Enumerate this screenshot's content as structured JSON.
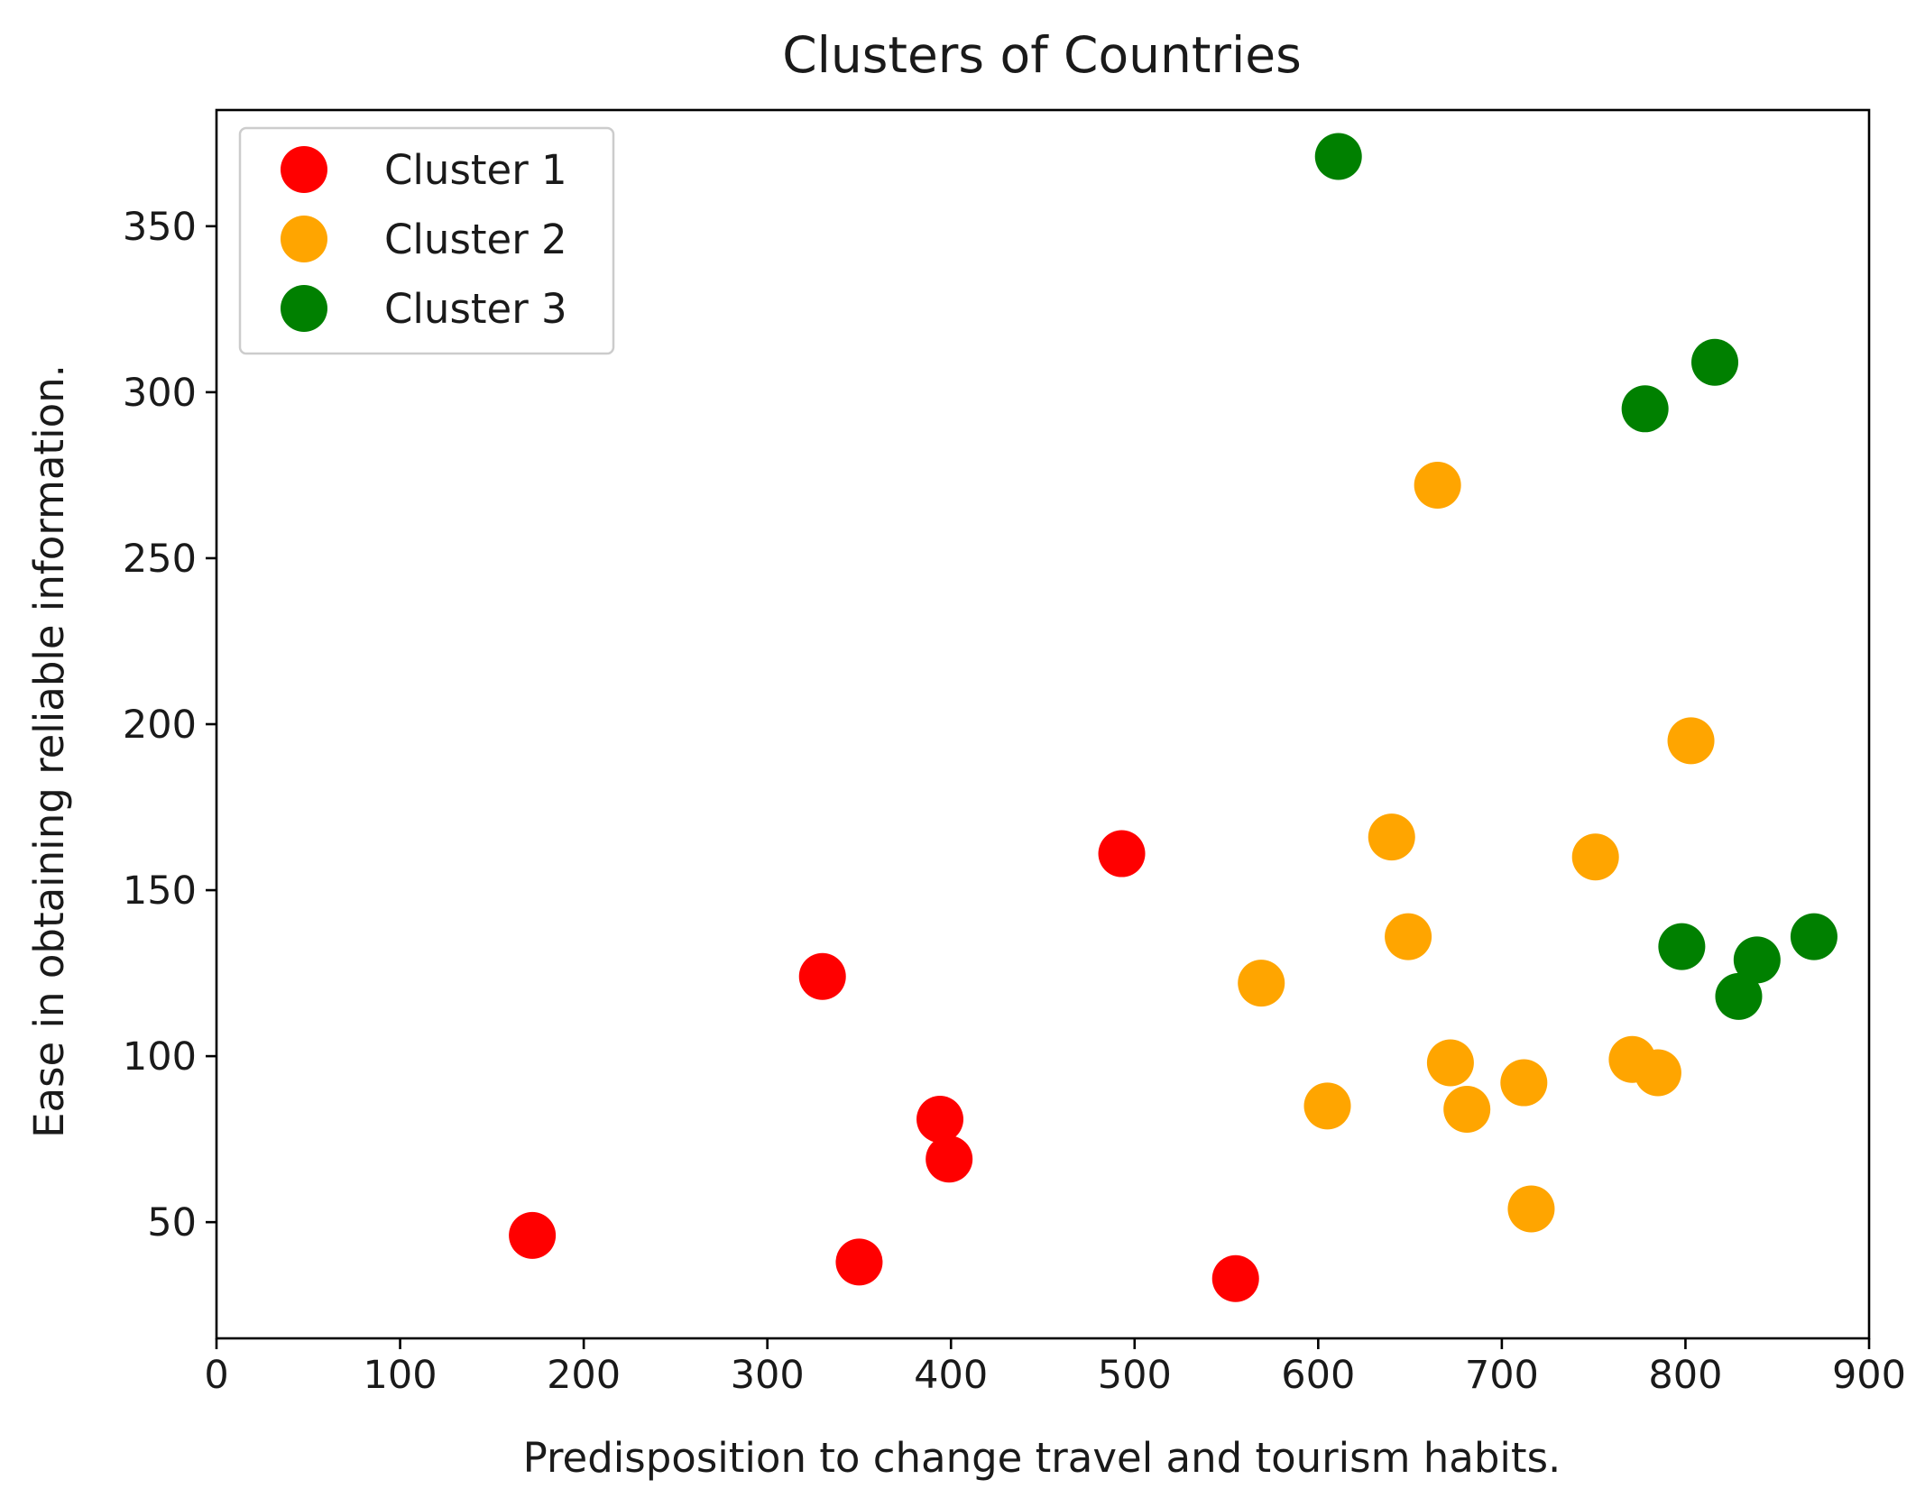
{
  "chart_data": {
    "type": "scatter",
    "title": "Clusters of Countries",
    "xlabel": "Predisposition to change travel and tourism habits.",
    "ylabel": "Ease in obtaining reliable information.",
    "xlim": [
      0,
      900
    ],
    "ylim": [
      15,
      385
    ],
    "xticks": [
      0,
      100,
      200,
      300,
      400,
      500,
      600,
      700,
      800,
      900
    ],
    "yticks": [
      50,
      100,
      150,
      200,
      250,
      300,
      350
    ],
    "grid": false,
    "legend_position": "top-left",
    "series": [
      {
        "name": "Cluster 1",
        "color": "#ff0000",
        "points": [
          {
            "x": 172,
            "y": 46
          },
          {
            "x": 330,
            "y": 124
          },
          {
            "x": 350,
            "y": 38
          },
          {
            "x": 394,
            "y": 81
          },
          {
            "x": 399,
            "y": 69
          },
          {
            "x": 493,
            "y": 161
          },
          {
            "x": 555,
            "y": 33
          }
        ]
      },
      {
        "name": "Cluster 2",
        "color": "#ffa500",
        "points": [
          {
            "x": 569,
            "y": 122
          },
          {
            "x": 605,
            "y": 85
          },
          {
            "x": 640,
            "y": 166
          },
          {
            "x": 649,
            "y": 136
          },
          {
            "x": 665,
            "y": 272
          },
          {
            "x": 672,
            "y": 98
          },
          {
            "x": 681,
            "y": 84
          },
          {
            "x": 712,
            "y": 92
          },
          {
            "x": 716,
            "y": 54
          },
          {
            "x": 751,
            "y": 160
          },
          {
            "x": 771,
            "y": 99
          },
          {
            "x": 785,
            "y": 95
          },
          {
            "x": 803,
            "y": 195
          }
        ]
      },
      {
        "name": "Cluster 3",
        "color": "#008000",
        "points": [
          {
            "x": 611,
            "y": 371
          },
          {
            "x": 778,
            "y": 295
          },
          {
            "x": 798,
            "y": 133
          },
          {
            "x": 816,
            "y": 309
          },
          {
            "x": 829,
            "y": 118
          },
          {
            "x": 839,
            "y": 129
          },
          {
            "x": 870,
            "y": 136
          }
        ]
      }
    ]
  }
}
